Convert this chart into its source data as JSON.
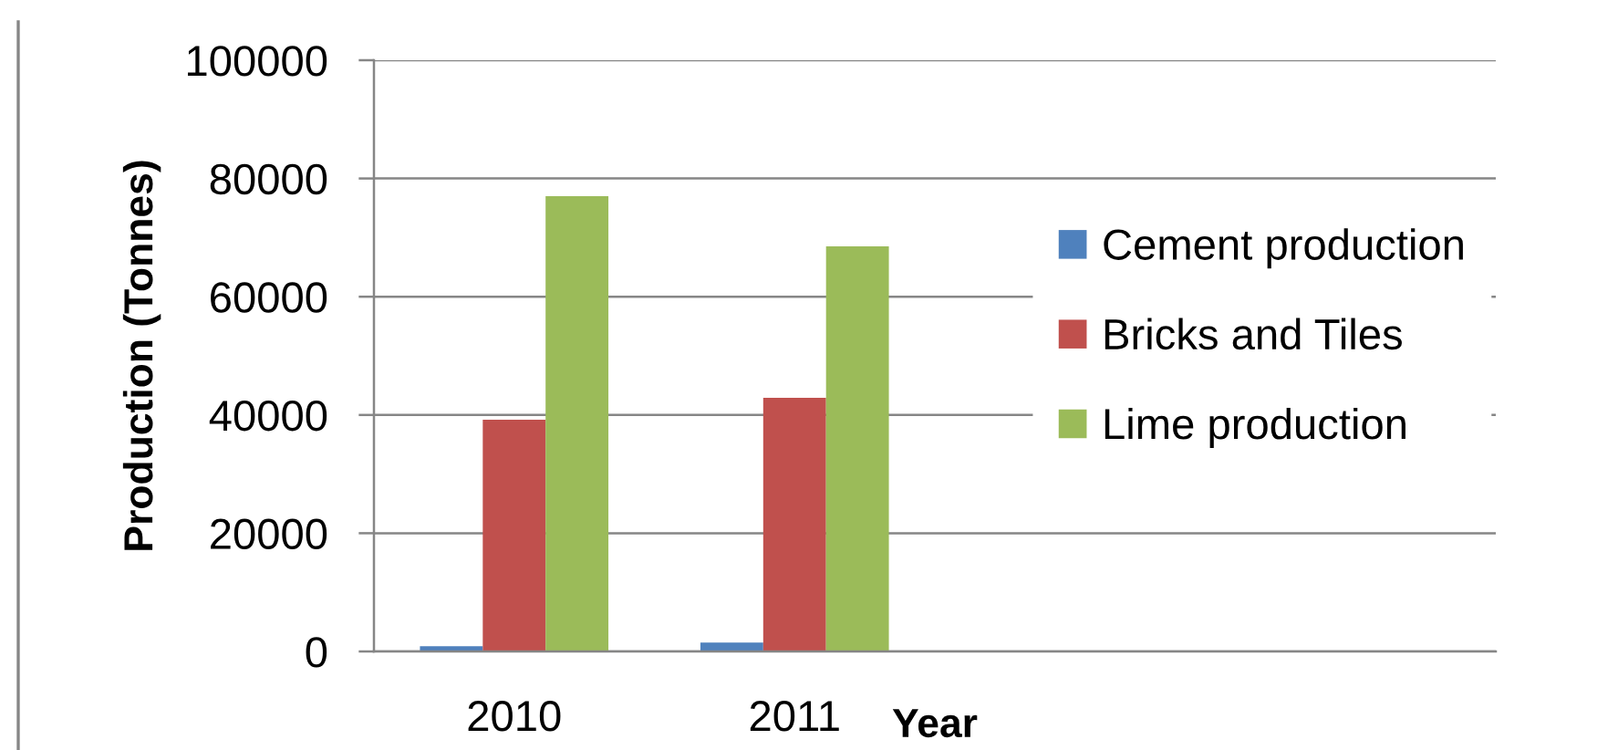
{
  "chart_data": {
    "type": "bar",
    "xlabel": "Year",
    "ylabel": "Production (Tonnes)",
    "categories": [
      "2010",
      "2011",
      null,
      null
    ],
    "series": [
      {
        "name": "Cement production",
        "color": "#4f81bd",
        "values": [
          900,
          1500,
          null,
          null
        ]
      },
      {
        "name": "Bricks and Tiles",
        "color": "#c0504d",
        "values": [
          39200,
          42900,
          null,
          null
        ]
      },
      {
        "name": "Lime production",
        "color": "#9bbb59",
        "values": [
          77000,
          68500,
          null,
          null
        ]
      }
    ],
    "ylim": [
      0,
      100000
    ],
    "yticks": [
      0,
      20000,
      40000,
      60000,
      80000,
      100000
    ],
    "grid": "y",
    "legend": "right"
  }
}
